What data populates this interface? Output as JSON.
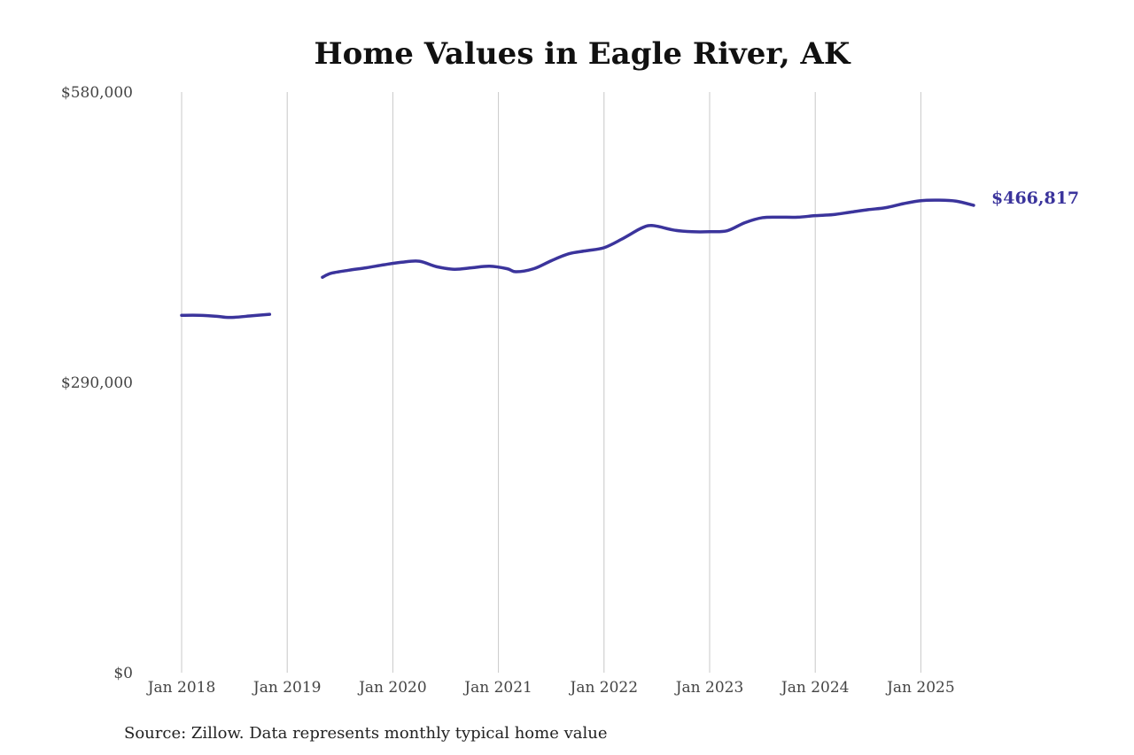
{
  "chart_data": {
    "type": "line",
    "title": "Home Values in Eagle River, AK",
    "xlabel": "",
    "ylabel": "",
    "ylim": [
      0,
      580000
    ],
    "y_ticks": [
      {
        "value": 0,
        "label": "$0"
      },
      {
        "value": 290000,
        "label": "$290,000"
      },
      {
        "value": 580000,
        "label": "$580,000"
      }
    ],
    "x_ticks": [
      {
        "value": "2018-01",
        "label": "Jan 2018"
      },
      {
        "value": "2019-01",
        "label": "Jan 2019"
      },
      {
        "value": "2020-01",
        "label": "Jan 2020"
      },
      {
        "value": "2021-01",
        "label": "Jan 2021"
      },
      {
        "value": "2022-01",
        "label": "Jan 2022"
      },
      {
        "value": "2023-01",
        "label": "Jan 2023"
      },
      {
        "value": "2024-01",
        "label": "Jan 2024"
      },
      {
        "value": "2025-01",
        "label": "Jan 2025"
      }
    ],
    "x_range": [
      "2018-01",
      "2025-07"
    ],
    "vertical_gridlines": true,
    "horizontal_gridlines": false,
    "color": "#3b349c",
    "series": [
      {
        "segments": [
          [
            {
              "x": "2018-01",
              "y": 357000
            },
            {
              "x": "2018-03",
              "y": 357000
            },
            {
              "x": "2018-05",
              "y": 356000
            },
            {
              "x": "2018-06",
              "y": 355000
            },
            {
              "x": "2018-07",
              "y": 355000
            },
            {
              "x": "2018-09",
              "y": 356500
            },
            {
              "x": "2018-11",
              "y": 358000
            }
          ],
          [
            {
              "x": "2019-05",
              "y": 395000
            },
            {
              "x": "2019-06",
              "y": 399000
            },
            {
              "x": "2019-08",
              "y": 402000
            },
            {
              "x": "2019-10",
              "y": 404500
            },
            {
              "x": "2019-12",
              "y": 407500
            },
            {
              "x": "2020-02",
              "y": 410000
            },
            {
              "x": "2020-04",
              "y": 411000
            },
            {
              "x": "2020-06",
              "y": 405500
            },
            {
              "x": "2020-08",
              "y": 403000
            },
            {
              "x": "2020-10",
              "y": 404500
            },
            {
              "x": "2020-12",
              "y": 406000
            },
            {
              "x": "2021-02",
              "y": 403500
            },
            {
              "x": "2021-03",
              "y": 400500
            },
            {
              "x": "2021-05",
              "y": 403500
            },
            {
              "x": "2021-07",
              "y": 411500
            },
            {
              "x": "2021-09",
              "y": 418500
            },
            {
              "x": "2021-11",
              "y": 421500
            },
            {
              "x": "2022-01",
              "y": 424500
            },
            {
              "x": "2022-03",
              "y": 433000
            },
            {
              "x": "2022-05",
              "y": 443000
            },
            {
              "x": "2022-06",
              "y": 446500
            },
            {
              "x": "2022-07",
              "y": 446000
            },
            {
              "x": "2022-09",
              "y": 442000
            },
            {
              "x": "2022-11",
              "y": 440500
            },
            {
              "x": "2023-01",
              "y": 440500
            },
            {
              "x": "2023-03",
              "y": 441500
            },
            {
              "x": "2023-05",
              "y": 449500
            },
            {
              "x": "2023-07",
              "y": 454500
            },
            {
              "x": "2023-09",
              "y": 455000
            },
            {
              "x": "2023-11",
              "y": 455000
            },
            {
              "x": "2024-01",
              "y": 456500
            },
            {
              "x": "2024-03",
              "y": 457500
            },
            {
              "x": "2024-05",
              "y": 460000
            },
            {
              "x": "2024-07",
              "y": 462500
            },
            {
              "x": "2024-09",
              "y": 464500
            },
            {
              "x": "2024-11",
              "y": 468500
            },
            {
              "x": "2025-01",
              "y": 471500
            },
            {
              "x": "2025-03",
              "y": 472000
            },
            {
              "x": "2025-05",
              "y": 471000
            },
            {
              "x": "2025-07",
              "y": 466817
            }
          ]
        ]
      }
    ],
    "end_label": "$466,817",
    "annotations": [
      {
        "text": "Source: Zillow. Data represents monthly typical home value"
      }
    ]
  }
}
